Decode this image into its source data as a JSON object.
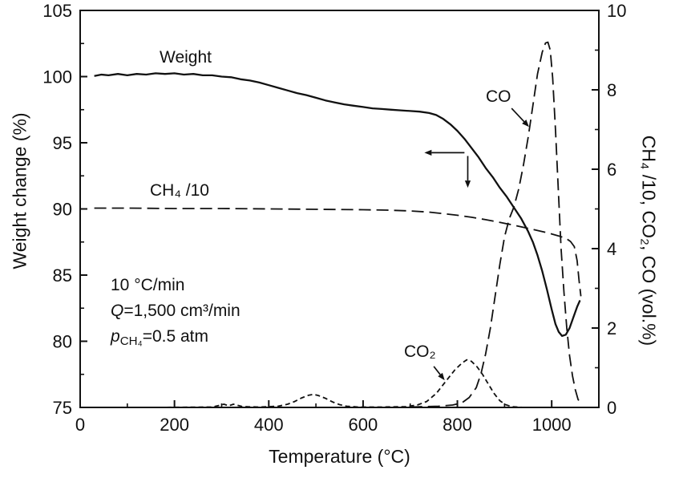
{
  "chart_data": {
    "type": "line",
    "xlabel": "Temperature (°C)",
    "ylabel_left": "Weight change (%)",
    "ylabel_right": "CH₄ /10, CO₂, CO (vol.%)",
    "xlim": [
      0,
      1100
    ],
    "ylim_left": [
      75,
      105
    ],
    "ylim_right": [
      0,
      10
    ],
    "x_major_ticks": [
      0,
      200,
      400,
      600,
      800,
      1000
    ],
    "x_minor_step": 100,
    "y_left_major_ticks": [
      75,
      80,
      85,
      90,
      95,
      100,
      105
    ],
    "y_left_minor_step": 2.5,
    "y_right_major_ticks": [
      0,
      2,
      4,
      6,
      8,
      10
    ],
    "y_right_minor_step": 1,
    "grid": false,
    "line_color": "#111111",
    "series": [
      {
        "name": "Weight",
        "axis": "left",
        "line": "solid",
        "points": [
          [
            30,
            100.05
          ],
          [
            45,
            100.15
          ],
          [
            60,
            100.1
          ],
          [
            80,
            100.2
          ],
          [
            100,
            100.1
          ],
          [
            120,
            100.2
          ],
          [
            140,
            100.15
          ],
          [
            160,
            100.25
          ],
          [
            180,
            100.2
          ],
          [
            200,
            100.25
          ],
          [
            220,
            100.15
          ],
          [
            240,
            100.2
          ],
          [
            260,
            100.1
          ],
          [
            280,
            100.1
          ],
          [
            300,
            100.0
          ],
          [
            320,
            99.95
          ],
          [
            340,
            99.8
          ],
          [
            360,
            99.7
          ],
          [
            380,
            99.55
          ],
          [
            400,
            99.35
          ],
          [
            420,
            99.15
          ],
          [
            440,
            98.95
          ],
          [
            460,
            98.75
          ],
          [
            480,
            98.6
          ],
          [
            500,
            98.4
          ],
          [
            520,
            98.2
          ],
          [
            540,
            98.05
          ],
          [
            560,
            97.9
          ],
          [
            580,
            97.8
          ],
          [
            600,
            97.7
          ],
          [
            620,
            97.6
          ],
          [
            640,
            97.55
          ],
          [
            660,
            97.5
          ],
          [
            680,
            97.45
          ],
          [
            700,
            97.4
          ],
          [
            720,
            97.35
          ],
          [
            740,
            97.25
          ],
          [
            755,
            97.1
          ],
          [
            770,
            96.8
          ],
          [
            785,
            96.4
          ],
          [
            800,
            95.9
          ],
          [
            815,
            95.3
          ],
          [
            830,
            94.6
          ],
          [
            845,
            93.9
          ],
          [
            860,
            93.1
          ],
          [
            875,
            92.4
          ],
          [
            890,
            91.6
          ],
          [
            905,
            90.9
          ],
          [
            920,
            90.1
          ],
          [
            935,
            89.3
          ],
          [
            950,
            88.3
          ],
          [
            960,
            87.5
          ],
          [
            970,
            86.5
          ],
          [
            980,
            85.3
          ],
          [
            990,
            83.9
          ],
          [
            1000,
            82.4
          ],
          [
            1008,
            81.3
          ],
          [
            1015,
            80.7
          ],
          [
            1022,
            80.4
          ],
          [
            1030,
            80.5
          ],
          [
            1038,
            81.0
          ],
          [
            1046,
            81.8
          ],
          [
            1054,
            82.6
          ],
          [
            1060,
            83.1
          ]
        ]
      },
      {
        "name": "CH4/10",
        "axis": "right",
        "line": "long-dash",
        "points": [
          [
            30,
            5.02
          ],
          [
            100,
            5.02
          ],
          [
            200,
            5.01
          ],
          [
            300,
            5.01
          ],
          [
            400,
            5.0
          ],
          [
            500,
            4.99
          ],
          [
            600,
            4.98
          ],
          [
            650,
            4.97
          ],
          [
            700,
            4.95
          ],
          [
            740,
            4.92
          ],
          [
            770,
            4.88
          ],
          [
            800,
            4.84
          ],
          [
            830,
            4.79
          ],
          [
            860,
            4.73
          ],
          [
            890,
            4.66
          ],
          [
            920,
            4.59
          ],
          [
            950,
            4.51
          ],
          [
            980,
            4.43
          ],
          [
            1000,
            4.37
          ],
          [
            1015,
            4.32
          ],
          [
            1030,
            4.26
          ],
          [
            1040,
            4.18
          ],
          [
            1048,
            4.05
          ],
          [
            1054,
            3.7
          ],
          [
            1058,
            3.2
          ],
          [
            1062,
            2.8
          ]
        ]
      },
      {
        "name": "CO",
        "axis": "right",
        "line": "long-dash",
        "points": [
          [
            700,
            0.01
          ],
          [
            760,
            0.03
          ],
          [
            790,
            0.06
          ],
          [
            810,
            0.12
          ],
          [
            825,
            0.25
          ],
          [
            840,
            0.5
          ],
          [
            850,
            0.85
          ],
          [
            860,
            1.35
          ],
          [
            870,
            2.0
          ],
          [
            880,
            2.8
          ],
          [
            890,
            3.6
          ],
          [
            900,
            4.3
          ],
          [
            910,
            4.75
          ],
          [
            920,
            5.05
          ],
          [
            930,
            5.5
          ],
          [
            940,
            6.1
          ],
          [
            950,
            6.8
          ],
          [
            960,
            7.6
          ],
          [
            970,
            8.4
          ],
          [
            980,
            8.95
          ],
          [
            987,
            9.18
          ],
          [
            992,
            9.2
          ],
          [
            997,
            9.0
          ],
          [
            1002,
            8.3
          ],
          [
            1008,
            7.0
          ],
          [
            1014,
            5.5
          ],
          [
            1020,
            4.0
          ],
          [
            1026,
            2.9
          ],
          [
            1032,
            2.0
          ],
          [
            1038,
            1.3
          ],
          [
            1044,
            0.8
          ],
          [
            1050,
            0.45
          ],
          [
            1056,
            0.2
          ],
          [
            1062,
            0.1
          ]
        ]
      },
      {
        "name": "CO2",
        "axis": "right",
        "line": "short-dash",
        "points": [
          [
            30,
            0.0
          ],
          [
            150,
            0.0
          ],
          [
            280,
            0.01
          ],
          [
            295,
            0.05
          ],
          [
            305,
            0.08
          ],
          [
            315,
            0.04
          ],
          [
            325,
            0.08
          ],
          [
            335,
            0.05
          ],
          [
            345,
            0.02
          ],
          [
            380,
            0.01
          ],
          [
            420,
            0.03
          ],
          [
            440,
            0.08
          ],
          [
            455,
            0.15
          ],
          [
            470,
            0.24
          ],
          [
            485,
            0.31
          ],
          [
            495,
            0.33
          ],
          [
            505,
            0.3
          ],
          [
            520,
            0.23
          ],
          [
            535,
            0.14
          ],
          [
            550,
            0.07
          ],
          [
            565,
            0.03
          ],
          [
            590,
            0.01
          ],
          [
            640,
            0.01
          ],
          [
            690,
            0.02
          ],
          [
            715,
            0.06
          ],
          [
            735,
            0.15
          ],
          [
            755,
            0.35
          ],
          [
            775,
            0.65
          ],
          [
            795,
            0.95
          ],
          [
            810,
            1.12
          ],
          [
            820,
            1.2
          ],
          [
            830,
            1.16
          ],
          [
            842,
            1.02
          ],
          [
            854,
            0.82
          ],
          [
            866,
            0.58
          ],
          [
            878,
            0.35
          ],
          [
            890,
            0.17
          ],
          [
            902,
            0.07
          ],
          [
            915,
            0.02
          ],
          [
            940,
            0.0
          ],
          [
            1000,
            0.0
          ],
          [
            1060,
            0.0
          ]
        ]
      }
    ],
    "arrows": [
      {
        "name": "weight-left-axis-arrow",
        "from": [
          815,
          94.25
        ],
        "to": [
          730,
          94.25
        ]
      },
      {
        "name": "weight-down-arrow",
        "from": [
          822,
          94.0
        ],
        "to": [
          822,
          91.6
        ]
      },
      {
        "name": "co-pointer-arrow",
        "from": [
          915,
          97.6
        ],
        "to": [
          952,
          96.2
        ]
      },
      {
        "name": "co2-pointer-arrow",
        "from": [
          750,
          78.1
        ],
        "to": [
          773,
          77.05
        ]
      }
    ],
    "annotations": {
      "weight_label": "Weight",
      "ch4_label": "CH₄ /10",
      "co_label": "CO",
      "co2_label": "CO₂",
      "conditions_line1": "10 °C/min",
      "conditions_q_italic": "Q",
      "conditions_q_rest": "=1,500 cm³/min",
      "conditions_p_italic": "p",
      "conditions_p_sub": "CH₄",
      "conditions_p_rest": "=0.5 atm"
    }
  }
}
